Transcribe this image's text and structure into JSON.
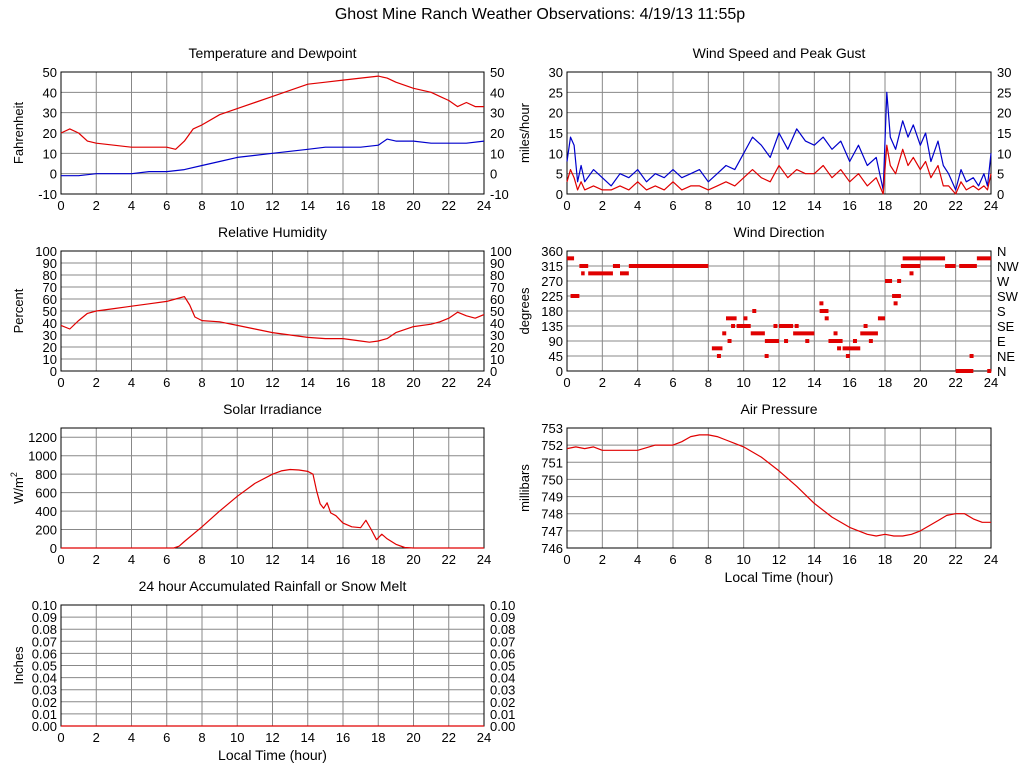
{
  "title": "Ghost Mine Ranch Weather Observations: 4/19/13 11:55p",
  "colors": {
    "red": "#e00000",
    "blue": "#0000cc",
    "grid": "#888888",
    "axis": "#000000"
  },
  "chart_data": [
    {
      "id": "temp",
      "type": "line",
      "title": "Temperature and Dewpoint",
      "ylabel": "Fahrenheit",
      "xlim": [
        0,
        24
      ],
      "ylim": [
        -10,
        50
      ],
      "yticks": [
        -10,
        0,
        10,
        20,
        30,
        40,
        50
      ],
      "xticks": [
        0,
        2,
        4,
        6,
        8,
        10,
        12,
        14,
        16,
        18,
        20,
        22,
        24
      ],
      "right_ticks": true,
      "xlabel": "",
      "grid": true,
      "series": [
        {
          "color": "#e00000",
          "x": [
            0,
            0.5,
            1,
            1.5,
            2,
            3,
            4,
            5,
            6,
            6.5,
            7,
            7.5,
            8,
            9,
            10,
            11,
            12,
            13,
            14,
            15,
            16,
            17,
            18,
            18.5,
            19,
            20,
            21,
            21.5,
            22,
            22.5,
            23,
            23.5,
            24
          ],
          "y": [
            20,
            22,
            20,
            16,
            15,
            14,
            13,
            13,
            13,
            12,
            16,
            22,
            24,
            29,
            32,
            35,
            38,
            41,
            44,
            45,
            46,
            47,
            48,
            47,
            45,
            42,
            40,
            38,
            36,
            33,
            35,
            33,
            33
          ]
        },
        {
          "color": "#0000cc",
          "x": [
            0,
            1,
            2,
            3,
            4,
            5,
            6,
            7,
            8,
            9,
            10,
            11,
            12,
            13,
            14,
            15,
            16,
            17,
            18,
            18.5,
            19,
            20,
            21,
            22,
            23,
            24
          ],
          "y": [
            -1,
            -1,
            0,
            0,
            0,
            1,
            1,
            2,
            4,
            6,
            8,
            9,
            10,
            11,
            12,
            13,
            13,
            13,
            14,
            17,
            16,
            16,
            15,
            15,
            15,
            16
          ]
        }
      ]
    },
    {
      "id": "wind",
      "type": "line",
      "title": "Wind Speed and Peak Gust",
      "ylabel": "miles/hour",
      "xlim": [
        0,
        24
      ],
      "ylim": [
        0,
        30
      ],
      "yticks": [
        0,
        5,
        10,
        15,
        20,
        25,
        30
      ],
      "xticks": [
        0,
        2,
        4,
        6,
        8,
        10,
        12,
        14,
        16,
        18,
        20,
        22,
        24
      ],
      "right_ticks": true,
      "xlabel": "",
      "grid": true,
      "series": [
        {
          "color": "#0000cc",
          "x": [
            0,
            0.2,
            0.4,
            0.6,
            0.8,
            1,
            1.5,
            2,
            2.5,
            3,
            3.5,
            4,
            4.5,
            5,
            5.5,
            6,
            6.5,
            7,
            7.5,
            8,
            8.5,
            9,
            9.5,
            10,
            10.5,
            11,
            11.5,
            12,
            12.5,
            13,
            13.5,
            14,
            14.5,
            15,
            15.5,
            16,
            16.5,
            17,
            17.5,
            17.9,
            18.1,
            18.3,
            18.6,
            19,
            19.3,
            19.6,
            20,
            20.3,
            20.6,
            21,
            21.3,
            21.6,
            22,
            22.3,
            22.6,
            23,
            23.3,
            23.6,
            23.8,
            24
          ],
          "y": [
            8,
            14,
            12,
            3,
            7,
            3,
            6,
            4,
            2,
            5,
            4,
            6,
            3,
            5,
            4,
            6,
            4,
            5,
            6,
            3,
            5,
            7,
            6,
            10,
            14,
            12,
            9,
            15,
            11,
            16,
            13,
            12,
            14,
            11,
            13,
            8,
            12,
            7,
            9,
            1,
            25,
            14,
            11,
            18,
            14,
            17,
            12,
            15,
            8,
            13,
            7,
            5,
            1,
            6,
            3,
            4,
            2,
            5,
            2,
            10
          ]
        },
        {
          "color": "#e00000",
          "x": [
            0,
            0.2,
            0.4,
            0.6,
            0.8,
            1,
            1.5,
            2,
            2.5,
            3,
            3.5,
            4,
            4.5,
            5,
            5.5,
            6,
            6.5,
            7,
            7.5,
            8,
            8.5,
            9,
            9.5,
            10,
            10.5,
            11,
            11.5,
            12,
            12.5,
            13,
            13.5,
            14,
            14.5,
            15,
            15.5,
            16,
            16.5,
            17,
            17.5,
            17.9,
            18.1,
            18.3,
            18.6,
            19,
            19.3,
            19.6,
            20,
            20.3,
            20.6,
            21,
            21.3,
            21.6,
            22,
            22.3,
            22.6,
            23,
            23.3,
            23.6,
            23.8,
            24
          ],
          "y": [
            3,
            6,
            4,
            1,
            3,
            1,
            2,
            1,
            1,
            2,
            1,
            3,
            1,
            2,
            1,
            3,
            1,
            2,
            2,
            1,
            2,
            3,
            2,
            4,
            6,
            4,
            3,
            7,
            4,
            6,
            5,
            5,
            7,
            4,
            6,
            3,
            5,
            2,
            4,
            0,
            12,
            7,
            5,
            11,
            7,
            9,
            6,
            8,
            4,
            7,
            2,
            2,
            0,
            3,
            1,
            2,
            1,
            2,
            1,
            5
          ]
        }
      ]
    },
    {
      "id": "humidity",
      "type": "line",
      "title": "Relative Humidity",
      "ylabel": "Percent",
      "xlim": [
        0,
        24
      ],
      "ylim": [
        0,
        100
      ],
      "yticks": [
        0,
        10,
        20,
        30,
        40,
        50,
        60,
        70,
        80,
        90,
        100
      ],
      "xticks": [
        0,
        2,
        4,
        6,
        8,
        10,
        12,
        14,
        16,
        18,
        20,
        22,
        24
      ],
      "right_ticks": true,
      "xlabel": "",
      "grid": true,
      "series": [
        {
          "color": "#e00000",
          "x": [
            0,
            0.5,
            1,
            1.5,
            2,
            3,
            4,
            5,
            6,
            6.5,
            7,
            7.3,
            7.6,
            8,
            9,
            10,
            11,
            12,
            13,
            14,
            15,
            16,
            17,
            17.5,
            18,
            18.5,
            19,
            20,
            21,
            21.5,
            22,
            22.5,
            23,
            23.5,
            24
          ],
          "y": [
            38,
            35,
            42,
            48,
            50,
            52,
            54,
            56,
            58,
            60,
            62,
            55,
            45,
            42,
            41,
            38,
            35,
            32,
            30,
            28,
            27,
            27,
            25,
            24,
            25,
            27,
            32,
            37,
            39,
            41,
            44,
            49,
            46,
            44,
            47
          ]
        }
      ]
    },
    {
      "id": "direction",
      "type": "scatter",
      "title": "Wind Direction",
      "ylabel": "degrees",
      "xlim": [
        0,
        24
      ],
      "ylim": [
        0,
        360
      ],
      "yticks": [
        0,
        45,
        90,
        135,
        180,
        225,
        270,
        315,
        360
      ],
      "ytick_labels_right": [
        "N",
        "NE",
        "E",
        "SE",
        "S",
        "SW",
        "W",
        "NW",
        "N"
      ],
      "xticks": [
        0,
        2,
        4,
        6,
        8,
        10,
        12,
        14,
        16,
        18,
        20,
        22,
        24
      ],
      "right_ticks": false,
      "xlabel": "",
      "grid": true,
      "series": [
        {
          "color": "#e00000",
          "segments": [
            [
              0,
              0.4,
              338
            ],
            [
              0.2,
              0.7,
              225
            ],
            [
              0.7,
              1.2,
              315
            ],
            [
              0.8,
              1.0,
              293
            ],
            [
              1.2,
              2.6,
              293
            ],
            [
              2.6,
              3.0,
              315
            ],
            [
              3.0,
              3.5,
              293
            ],
            [
              3.5,
              8.0,
              315
            ],
            [
              8.2,
              8.8,
              68
            ],
            [
              9.0,
              9.6,
              158
            ],
            [
              9.6,
              10.4,
              135
            ],
            [
              10.4,
              11.2,
              113
            ],
            [
              11.2,
              12.0,
              90
            ],
            [
              12.0,
              12.8,
              135
            ],
            [
              12.8,
              14.0,
              113
            ],
            [
              14.3,
              14.8,
              180
            ],
            [
              14.8,
              15.6,
              90
            ],
            [
              15.6,
              16.6,
              68
            ],
            [
              16.6,
              17.6,
              113
            ],
            [
              17.6,
              18.0,
              158
            ],
            [
              18.0,
              18.4,
              270
            ],
            [
              18.4,
              18.9,
              225
            ],
            [
              18.9,
              20.0,
              315
            ],
            [
              19.0,
              20.0,
              338
            ],
            [
              20.0,
              21.4,
              338
            ],
            [
              21.4,
              22.0,
              315
            ],
            [
              22.0,
              23.0,
              0
            ],
            [
              22.2,
              23.2,
              315
            ],
            [
              23.2,
              24.0,
              338
            ]
          ],
          "points": [
            [
              8.6,
              45
            ],
            [
              8.9,
              113
            ],
            [
              9.2,
              90
            ],
            [
              9.4,
              135
            ],
            [
              10.1,
              158
            ],
            [
              10.6,
              180
            ],
            [
              11.3,
              45
            ],
            [
              11.8,
              135
            ],
            [
              12.4,
              90
            ],
            [
              13.0,
              135
            ],
            [
              13.6,
              90
            ],
            [
              14.4,
              203
            ],
            [
              14.7,
              158
            ],
            [
              15.2,
              113
            ],
            [
              15.4,
              68
            ],
            [
              15.9,
              45
            ],
            [
              16.3,
              90
            ],
            [
              16.9,
              135
            ],
            [
              17.2,
              90
            ],
            [
              18.6,
              203
            ],
            [
              18.8,
              270
            ],
            [
              19.5,
              293
            ],
            [
              21.8,
              315
            ],
            [
              22.9,
              45
            ],
            [
              23.9,
              0
            ]
          ]
        }
      ]
    },
    {
      "id": "solar",
      "type": "line",
      "title": "Solar Irradiance",
      "ylabel": "W/m",
      "ylabel_sup": "2",
      "xlim": [
        0,
        24
      ],
      "ylim": [
        0,
        1300
      ],
      "yticks": [
        0,
        200,
        400,
        600,
        800,
        1000,
        1200
      ],
      "xticks": [
        0,
        2,
        4,
        6,
        8,
        10,
        12,
        14,
        16,
        18,
        20,
        22,
        24
      ],
      "right_ticks": false,
      "xlabel": "",
      "grid": true,
      "series": [
        {
          "color": "#e00000",
          "x": [
            0,
            6.4,
            6.7,
            7,
            8,
            9,
            10,
            11,
            12,
            12.5,
            13,
            13.5,
            14,
            14.3,
            14.5,
            14.7,
            14.9,
            15.1,
            15.3,
            15.6,
            16,
            16.5,
            17,
            17.3,
            17.6,
            17.9,
            18.2,
            18.5,
            19,
            19.5,
            20,
            24
          ],
          "y": [
            0,
            0,
            20,
            70,
            230,
            400,
            560,
            700,
            800,
            835,
            850,
            845,
            830,
            800,
            620,
            480,
            430,
            490,
            380,
            350,
            270,
            230,
            220,
            300,
            200,
            90,
            150,
            100,
            40,
            5,
            0,
            0
          ]
        }
      ]
    },
    {
      "id": "pressure",
      "type": "line",
      "title": "Air Pressure",
      "ylabel": "millibars",
      "xlim": [
        0,
        24
      ],
      "ylim": [
        746,
        753
      ],
      "yticks": [
        746,
        747,
        748,
        749,
        750,
        751,
        752,
        753
      ],
      "xticks": [
        0,
        2,
        4,
        6,
        8,
        10,
        12,
        14,
        16,
        18,
        20,
        22,
        24
      ],
      "right_ticks": false,
      "xlabel": "Local Time (hour)",
      "grid": true,
      "series": [
        {
          "color": "#e00000",
          "x": [
            0,
            0.5,
            1,
            1.5,
            2,
            3,
            4,
            5,
            6,
            6.5,
            7,
            7.5,
            8,
            8.5,
            9,
            9.5,
            10,
            11,
            12,
            13,
            14,
            15,
            16,
            17,
            17.5,
            18,
            18.5,
            19,
            19.5,
            20,
            21,
            21.5,
            22,
            22.5,
            23,
            23.5,
            24
          ],
          "y": [
            751.8,
            751.9,
            751.8,
            751.9,
            751.7,
            751.7,
            751.7,
            752.0,
            752.0,
            752.2,
            752.5,
            752.6,
            752.6,
            752.5,
            752.3,
            752.1,
            751.9,
            751.3,
            750.5,
            749.6,
            748.6,
            747.8,
            747.2,
            746.8,
            746.7,
            746.8,
            746.7,
            746.7,
            746.8,
            747.0,
            747.6,
            747.9,
            748.0,
            748.0,
            747.7,
            747.5,
            747.5
          ]
        }
      ]
    },
    {
      "id": "rain",
      "type": "line",
      "title": "24 hour Accumulated Rainfall or Snow Melt",
      "ylabel": "Inches",
      "xlim": [
        0,
        24
      ],
      "ylim": [
        0,
        0.1
      ],
      "yticks": [
        0,
        0.01,
        0.02,
        0.03,
        0.04,
        0.05,
        0.06,
        0.07,
        0.08,
        0.09,
        0.1
      ],
      "ytick_decimals": 2,
      "xticks": [
        0,
        2,
        4,
        6,
        8,
        10,
        12,
        14,
        16,
        18,
        20,
        22,
        24
      ],
      "right_ticks": true,
      "xlabel": "Local Time (hour)",
      "grid": true,
      "series": [
        {
          "color": "#e00000",
          "x": [
            0,
            24
          ],
          "y": [
            0,
            0
          ]
        }
      ]
    }
  ]
}
